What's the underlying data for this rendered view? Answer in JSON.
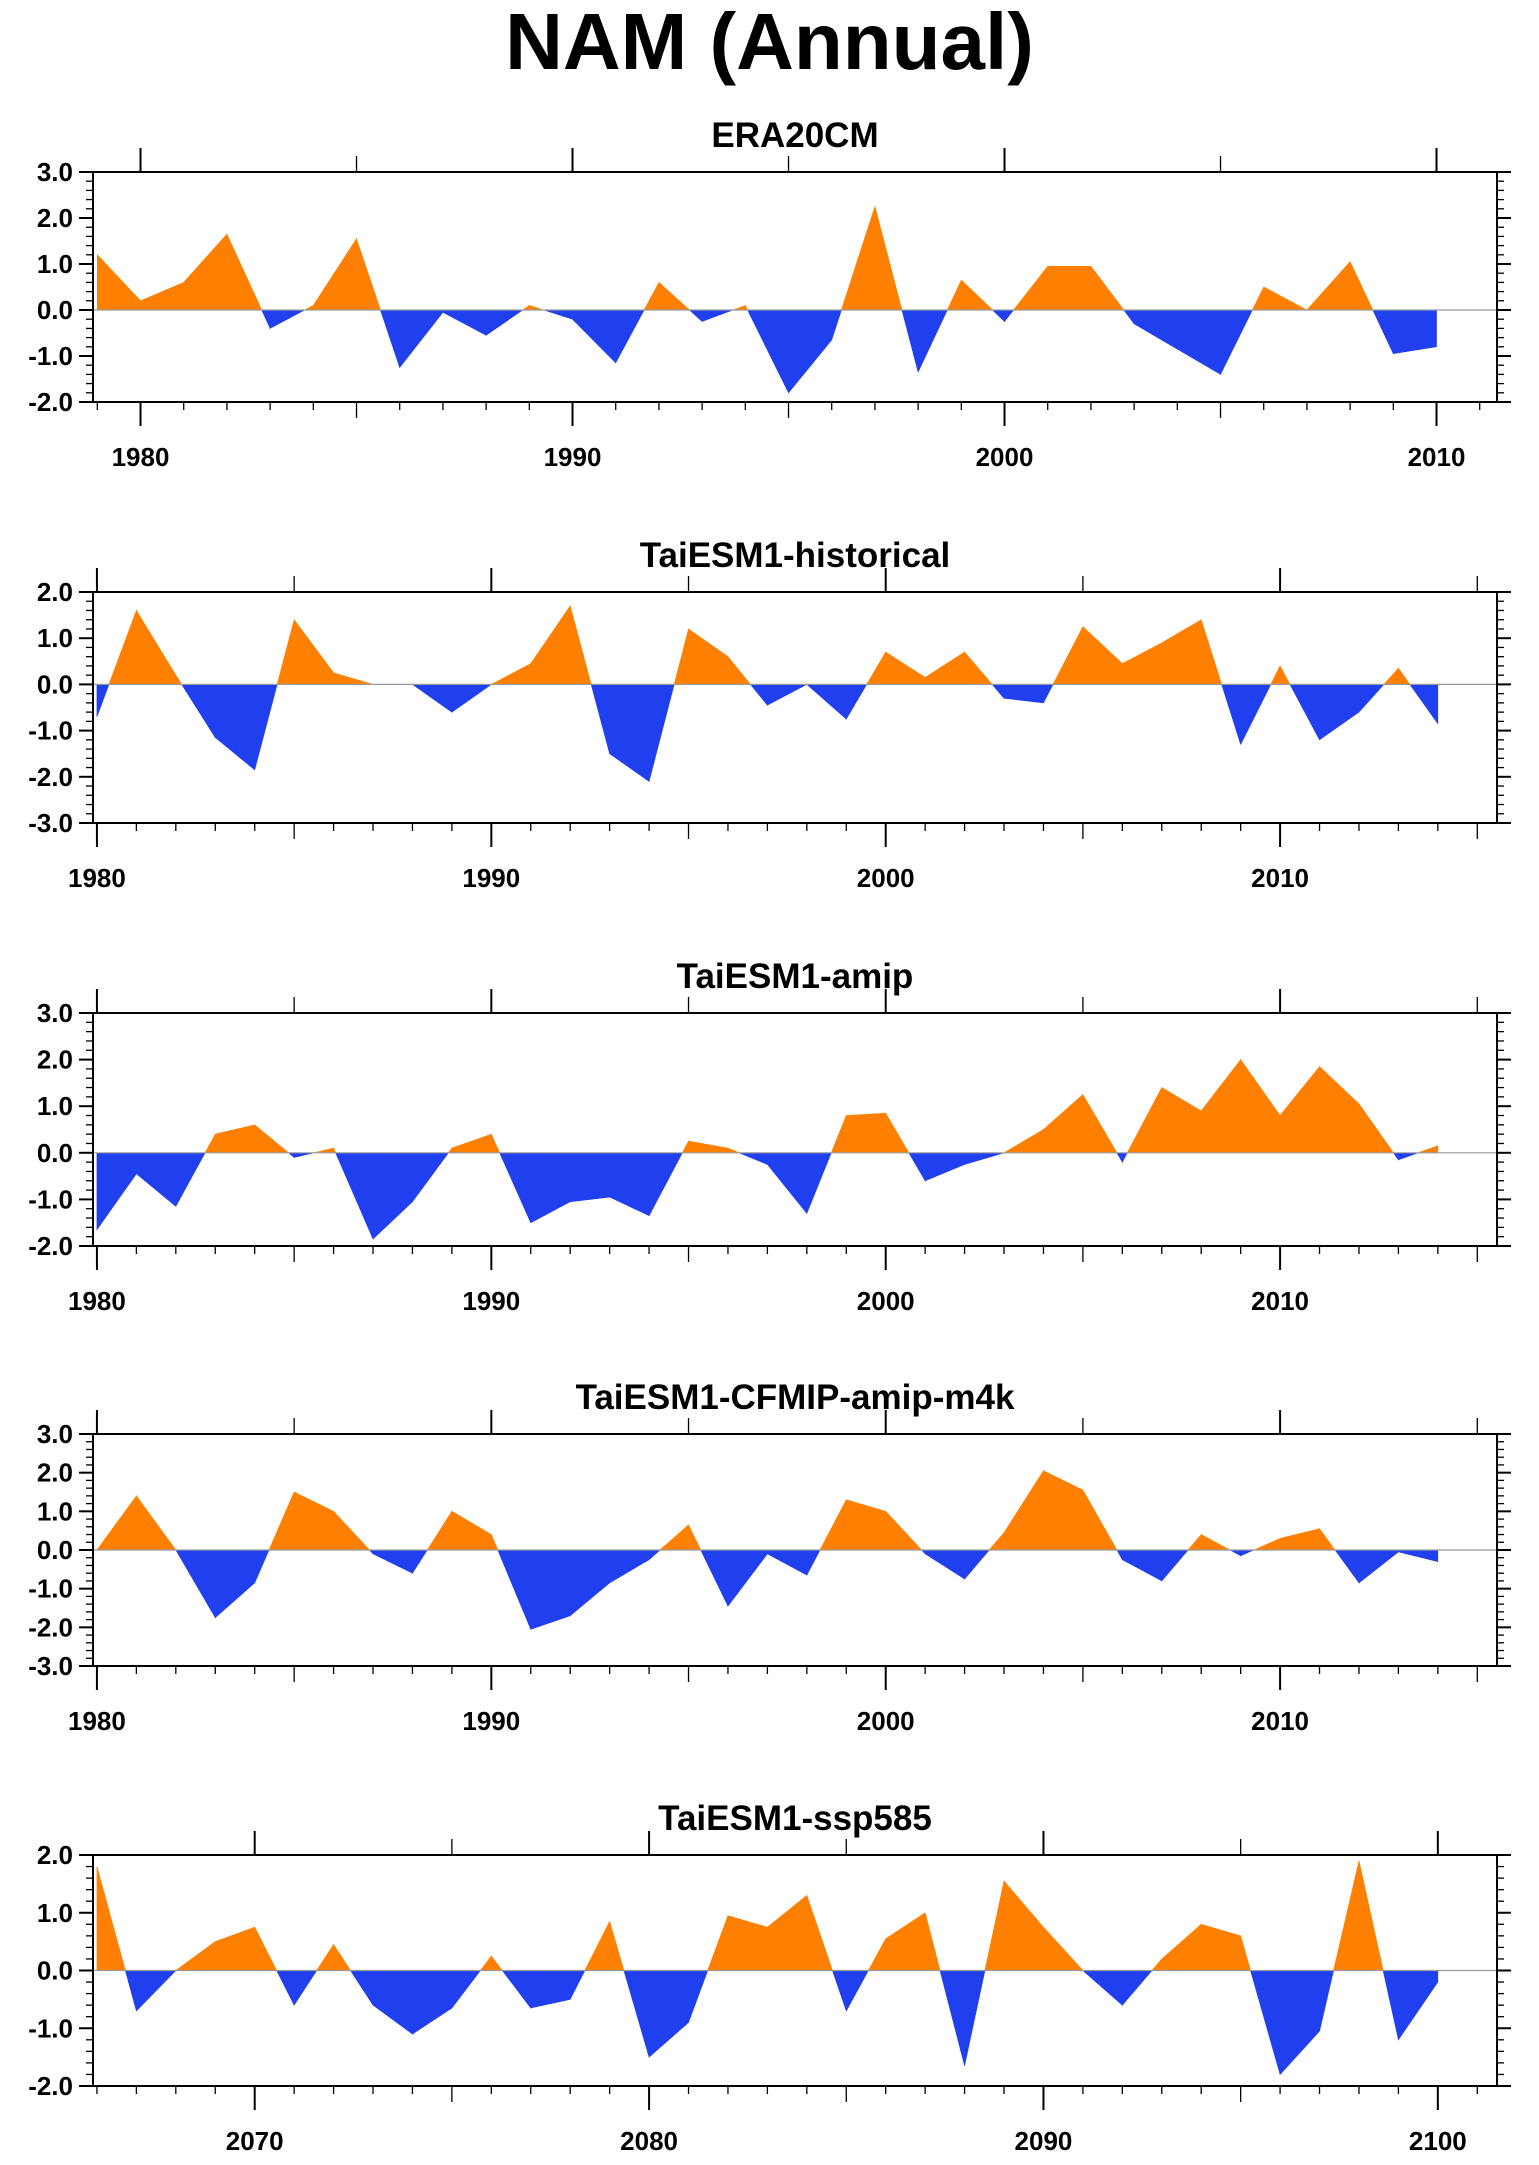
{
  "title": "NAM (Annual)",
  "colors": {
    "positive": "#ff8000",
    "negative": "#2040f0",
    "axis": "#000000",
    "zero_line": "#9a9a9a"
  },
  "chart_data": [
    {
      "type": "area",
      "title": "ERA20CM",
      "xlabel": "",
      "ylabel": "",
      "xlim": [
        1978.9,
        2011.4
      ],
      "ylim": [
        -2,
        3
      ],
      "yticks": [
        "-2.0",
        "-1.0",
        "0.0",
        "1.0",
        "2.0",
        "3.0"
      ],
      "yticks_values": [
        -2,
        -1,
        0,
        1,
        2,
        3
      ],
      "xticks": [
        "1980",
        "1990",
        "2000",
        "2010"
      ],
      "xticks_values": [
        1980,
        1990,
        2000,
        2010
      ],
      "grid": false,
      "series": [
        {
          "x": [
            1979,
            1980,
            1981,
            1982,
            1983,
            1984,
            1985,
            1986,
            1987,
            1988,
            1989,
            1990,
            1991,
            1992,
            1993,
            1994,
            1995,
            1996,
            1997,
            1998,
            1999,
            2000,
            2001,
            2002,
            2003,
            2004,
            2005,
            2006,
            2007,
            2008,
            2009,
            2010
          ],
          "values": [
            1.2,
            0.2,
            0.6,
            1.65,
            -0.4,
            0.1,
            1.55,
            -1.25,
            -0.05,
            -0.55,
            0.1,
            -0.2,
            -1.15,
            0.6,
            -0.25,
            0.1,
            -1.8,
            -0.65,
            2.25,
            -1.35,
            0.65,
            -0.25,
            0.95,
            0.95,
            -0.3,
            -0.85,
            -1.4,
            0.5,
            0.0,
            1.05,
            -0.95,
            -0.8
          ]
        }
      ]
    },
    {
      "type": "area",
      "title": "TaiESM1-historical",
      "xlabel": "",
      "ylabel": "",
      "xlim": [
        1979.9,
        2015.5
      ],
      "ylim": [
        -3,
        2
      ],
      "yticks": [
        "-3.0",
        "-2.0",
        "-1.0",
        "0.0",
        "1.0",
        "2.0"
      ],
      "yticks_values": [
        -3,
        -2,
        -1,
        0,
        1,
        2
      ],
      "xticks": [
        "1980",
        "1990",
        "2000",
        "2010"
      ],
      "xticks_values": [
        1980,
        1990,
        2000,
        2010
      ],
      "grid": false,
      "series": [
        {
          "x": [
            1980,
            1981,
            1982,
            1983,
            1984,
            1985,
            1986,
            1987,
            1988,
            1989,
            1990,
            1991,
            1992,
            1993,
            1994,
            1995,
            1996,
            1997,
            1998,
            1999,
            2000,
            2001,
            2002,
            2003,
            2004,
            2005,
            2006,
            2007,
            2008,
            2009,
            2010,
            2011,
            2012,
            2013,
            2014
          ],
          "values": [
            -0.7,
            1.6,
            0.2,
            -1.15,
            -1.85,
            1.4,
            0.25,
            0.0,
            0.0,
            -0.6,
            0.0,
            0.45,
            1.7,
            -1.5,
            -2.1,
            1.2,
            0.6,
            -0.45,
            0.0,
            -0.75,
            0.7,
            0.15,
            0.7,
            -0.3,
            -0.4,
            1.25,
            0.45,
            0.9,
            1.4,
            -1.3,
            0.4,
            -1.2,
            -0.6,
            0.35,
            -0.85
          ]
        }
      ]
    },
    {
      "type": "area",
      "title": "TaiESM1-amip",
      "xlabel": "",
      "ylabel": "",
      "xlim": [
        1979.9,
        2015.5
      ],
      "ylim": [
        -2,
        3
      ],
      "yticks": [
        "-2.0",
        "-1.0",
        "0.0",
        "1.0",
        "2.0",
        "3.0"
      ],
      "yticks_values": [
        -2,
        -1,
        0,
        1,
        2,
        3
      ],
      "xticks": [
        "1980",
        "1990",
        "2000",
        "2010"
      ],
      "xticks_values": [
        1980,
        1990,
        2000,
        2010
      ],
      "grid": false,
      "series": [
        {
          "x": [
            1980,
            1981,
            1982,
            1983,
            1984,
            1985,
            1986,
            1987,
            1988,
            1989,
            1990,
            1991,
            1992,
            1993,
            1994,
            1995,
            1996,
            1997,
            1998,
            1999,
            2000,
            2001,
            2002,
            2003,
            2004,
            2005,
            2006,
            2007,
            2008,
            2009,
            2010,
            2011,
            2012,
            2013,
            2014
          ],
          "values": [
            -1.65,
            -0.45,
            -1.15,
            0.4,
            0.6,
            -0.1,
            0.1,
            -1.85,
            -1.05,
            0.1,
            0.4,
            -1.5,
            -1.05,
            -0.95,
            -1.35,
            0.25,
            0.1,
            -0.25,
            -1.3,
            0.8,
            0.85,
            -0.6,
            -0.25,
            0.0,
            0.5,
            1.25,
            -0.2,
            1.4,
            0.9,
            2.0,
            0.8,
            1.85,
            1.05,
            -0.15,
            0.15
          ]
        }
      ]
    },
    {
      "type": "area",
      "title": "TaiESM1-CFMIP-amip-m4k",
      "xlabel": "",
      "ylabel": "",
      "xlim": [
        1979.9,
        2015.5
      ],
      "ylim": [
        -3,
        3
      ],
      "yticks": [
        "-3.0",
        "-2.0",
        "-1.0",
        "0.0",
        "1.0",
        "2.0",
        "3.0"
      ],
      "yticks_values": [
        -3,
        -2,
        -1,
        0,
        1,
        2,
        3
      ],
      "xticks": [
        "1980",
        "1990",
        "2000",
        "2010"
      ],
      "xticks_values": [
        1980,
        1990,
        2000,
        2010
      ],
      "grid": false,
      "series": [
        {
          "x": [
            1980,
            1981,
            1982,
            1983,
            1984,
            1985,
            1986,
            1987,
            1988,
            1989,
            1990,
            1991,
            1992,
            1993,
            1994,
            1995,
            1996,
            1997,
            1998,
            1999,
            2000,
            2001,
            2002,
            2003,
            2004,
            2005,
            2006,
            2007,
            2008,
            2009,
            2010,
            2011,
            2012,
            2013,
            2014
          ],
          "values": [
            0.0,
            1.4,
            0.0,
            -1.75,
            -0.85,
            1.5,
            1.0,
            -0.1,
            -0.6,
            1.0,
            0.4,
            -2.05,
            -1.7,
            -0.85,
            -0.25,
            0.65,
            -1.45,
            -0.1,
            -0.65,
            1.3,
            1.0,
            -0.1,
            -0.75,
            0.45,
            2.05,
            1.55,
            -0.25,
            -0.8,
            0.4,
            -0.15,
            0.3,
            0.55,
            -0.85,
            -0.05,
            -0.3
          ]
        }
      ]
    },
    {
      "type": "area",
      "title": "TaiESM1-ssp585",
      "xlabel": "",
      "ylabel": "",
      "xlim": [
        2065.9,
        2101.5
      ],
      "ylim": [
        -2,
        2
      ],
      "yticks": [
        "-2.0",
        "-1.0",
        "0.0",
        "1.0",
        "2.0"
      ],
      "yticks_values": [
        -2,
        -1,
        0,
        1,
        2
      ],
      "xticks": [
        "2070",
        "2080",
        "2090",
        "2100"
      ],
      "xticks_values": [
        2070,
        2080,
        2090,
        2100
      ],
      "grid": false,
      "series": [
        {
          "x": [
            2066,
            2067,
            2068,
            2069,
            2070,
            2071,
            2072,
            2073,
            2074,
            2075,
            2076,
            2077,
            2078,
            2079,
            2080,
            2081,
            2082,
            2083,
            2084,
            2085,
            2086,
            2087,
            2088,
            2089,
            2090,
            2091,
            2092,
            2093,
            2094,
            2095,
            2096,
            2097,
            2098,
            2099,
            2100
          ],
          "values": [
            1.8,
            -0.7,
            0.0,
            0.5,
            0.75,
            -0.6,
            0.45,
            -0.6,
            -1.1,
            -0.65,
            0.25,
            -0.65,
            -0.5,
            0.85,
            -1.5,
            -0.9,
            0.95,
            0.75,
            1.3,
            -0.7,
            0.55,
            1.0,
            -1.65,
            1.55,
            0.75,
            0.0,
            -0.6,
            0.2,
            0.8,
            0.6,
            -1.8,
            -1.05,
            1.9,
            -1.2,
            -0.2
          ]
        }
      ]
    }
  ]
}
